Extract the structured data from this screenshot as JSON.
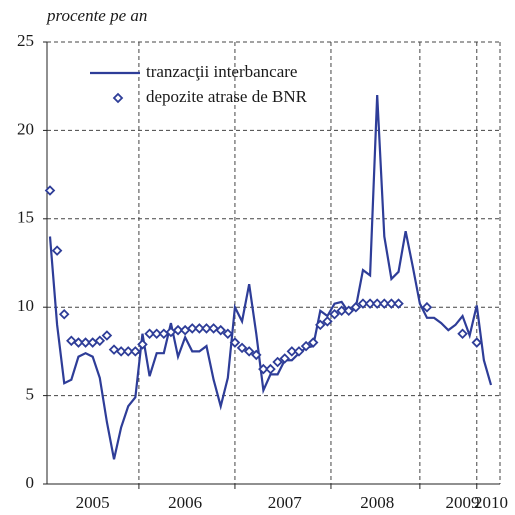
{
  "chart_data": {
    "type": "line",
    "title": "procente pe an",
    "categories": [
      null,
      null,
      null,
      null,
      null,
      null,
      "2005",
      null,
      null,
      null,
      null,
      null,
      null,
      null,
      null,
      null,
      null,
      null,
      null,
      "2006",
      null,
      null,
      null,
      null,
      null,
      null,
      null,
      null,
      null,
      null,
      null,
      null,
      null,
      "2007",
      null,
      null,
      null,
      null,
      null,
      null,
      null,
      null,
      null,
      null,
      null,
      null,
      "2008",
      null,
      null,
      null,
      null,
      null,
      null,
      null,
      null,
      null,
      null,
      null,
      "2009",
      null,
      null,
      null,
      "2010"
    ],
    "series": [
      {
        "name": "tranzacţii interbancare",
        "color": "#2e3d98",
        "style": "line",
        "values": [
          14,
          9,
          5.7,
          5.9,
          7.2,
          7.4,
          7.2,
          6,
          3.5,
          1.4,
          3.2,
          4.4,
          4.9,
          8.5,
          6.1,
          7.4,
          7.4,
          9.1,
          7.2,
          8.3,
          7.5,
          7.5,
          7.8,
          5.9,
          4.4,
          6,
          10,
          9.2,
          11.3,
          8.5,
          5.3,
          6.2,
          6.2,
          7,
          7,
          7.4,
          7.7,
          7.8,
          9.8,
          9.5,
          10.2,
          10.3,
          9.7,
          10,
          12.1,
          11.8,
          22,
          14,
          11.6,
          12,
          14.3,
          12.3,
          10.2,
          9.4,
          9.4,
          9.1,
          8.7,
          9,
          9.5,
          8.4,
          10.1,
          7,
          5.6
        ]
      },
      {
        "name": "depozite atrase de BNR",
        "color": "#2e3d98",
        "style": "diamond",
        "values": [
          16.6,
          13.2,
          9.6,
          8.1,
          8,
          8,
          8,
          8.1,
          8.4,
          7.6,
          7.5,
          7.5,
          7.5,
          7.9,
          8.5,
          8.5,
          8.5,
          8.6,
          8.7,
          8.7,
          8.8,
          8.8,
          8.8,
          8.8,
          8.7,
          8.5,
          8,
          7.7,
          7.5,
          7.3,
          6.5,
          6.5,
          6.9,
          7.1,
          7.5,
          7.5,
          7.8,
          8,
          9,
          9.2,
          9.6,
          9.8,
          9.8,
          10,
          10.2,
          10.2,
          10.2,
          10.2,
          10.2,
          10.2,
          null,
          null,
          null,
          10,
          null,
          null,
          null,
          null,
          8.5,
          null,
          8,
          null,
          null
        ]
      }
    ],
    "ylim": [
      0,
      25
    ],
    "yticks": [
      0,
      5,
      10,
      15,
      20,
      25
    ],
    "grid": true
  }
}
